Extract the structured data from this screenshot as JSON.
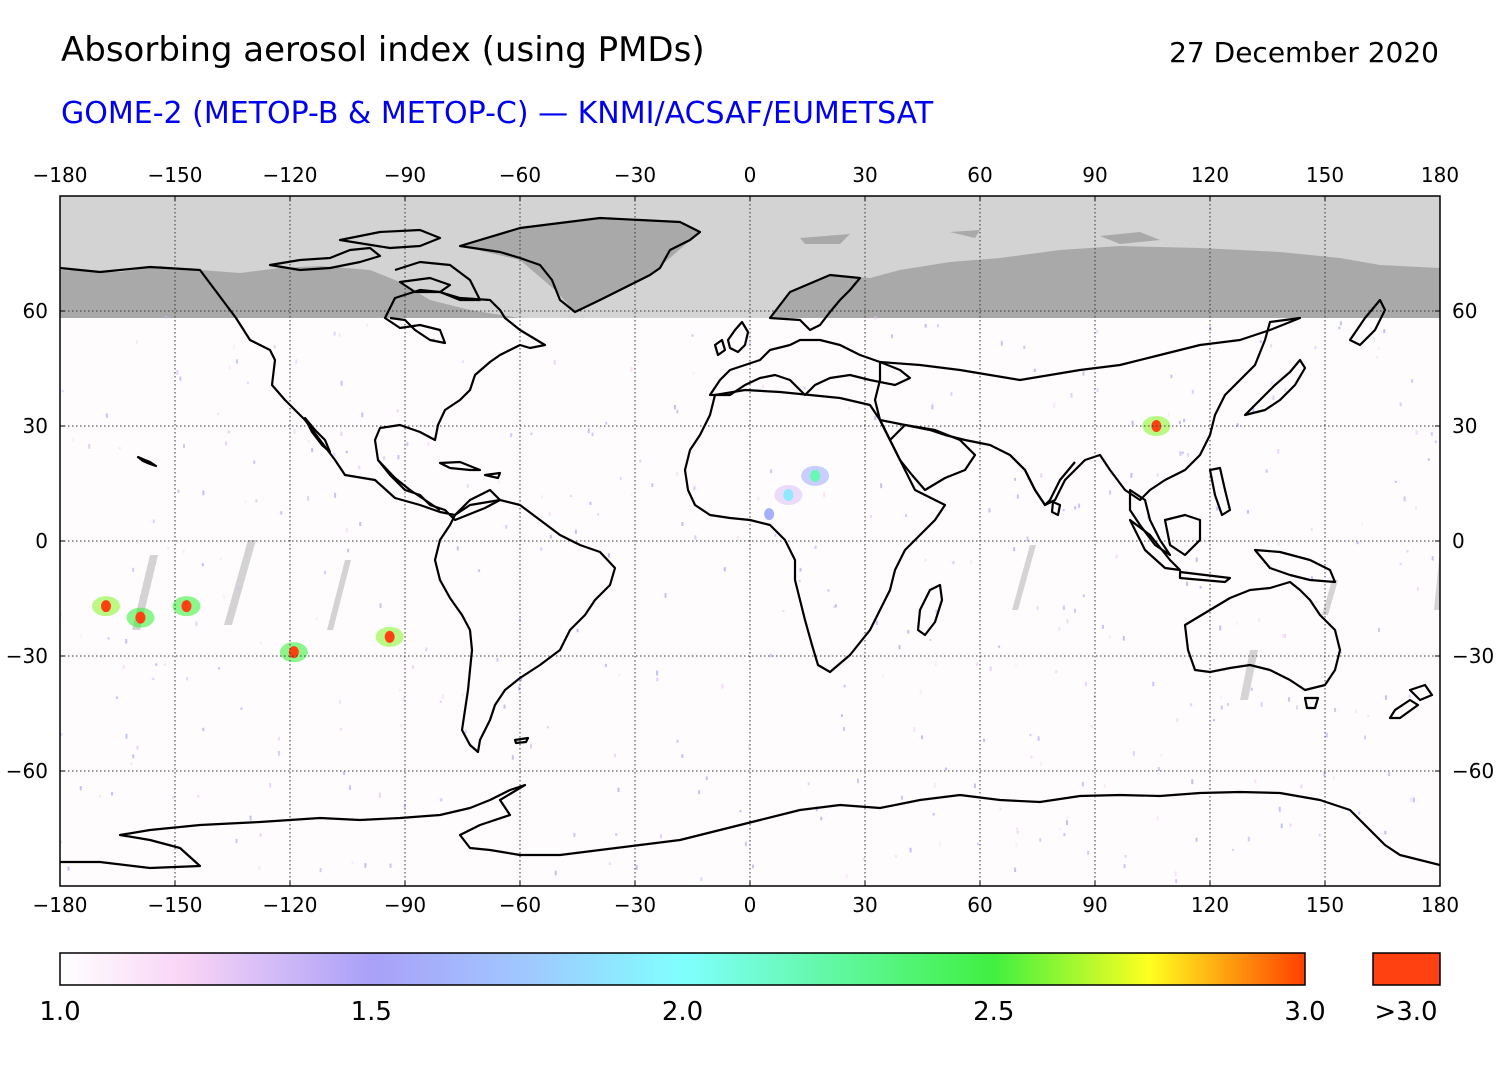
{
  "header": {
    "title": "Absorbing aerosol index (using PMDs)",
    "date": "27 December 2020",
    "subtitle": "GOME-2 (METOP-B & METOP-C) — KNMI/ACSAF/EUMETSAT"
  },
  "colors": {
    "subtitle": "#0000ee",
    "no_data_polar": "#d3d3d3",
    "land_polar": "#a9a9a9",
    "gaps": "#cccccc",
    "grid": "#333333",
    "coast": "#000000"
  },
  "map": {
    "projection": "equirectangular",
    "lon_range": [
      -180,
      180
    ],
    "lat_range": [
      -90,
      90
    ],
    "lon_ticks": [
      -180,
      -150,
      -120,
      -90,
      -60,
      -30,
      0,
      30,
      60,
      90,
      120,
      150,
      180
    ],
    "lat_ticks": [
      60,
      30,
      0,
      -30,
      -60
    ],
    "lon_tick_labels": [
      "−180",
      "−150",
      "−120",
      "−90",
      "−60",
      "−30",
      "0",
      "30",
      "60",
      "90",
      "120",
      "150",
      "180"
    ],
    "lat_tick_labels": [
      "60",
      "30",
      "0",
      "−30",
      "−60"
    ],
    "grid": true,
    "no_data_above_lat": 59
  },
  "colorbar": {
    "min": 1.0,
    "max": 3.0,
    "tick_labels": [
      "1.0",
      "1.5",
      "2.0",
      "2.5",
      "3.0"
    ],
    "over_label": ">3.0",
    "stops": [
      {
        "v": 1.0,
        "c": "#ffffff"
      },
      {
        "v": 1.2,
        "c": "#f9d4f6"
      },
      {
        "v": 1.5,
        "c": "#a9a0f8"
      },
      {
        "v": 1.75,
        "c": "#a0c8ff"
      },
      {
        "v": 2.0,
        "c": "#80ffff"
      },
      {
        "v": 2.5,
        "c": "#40f040"
      },
      {
        "v": 2.75,
        "c": "#ffff20"
      },
      {
        "v": 3.0,
        "c": "#ff4000"
      }
    ],
    "over_color": "#ff4010"
  },
  "aerosol_hotspots": [
    {
      "lon": 106,
      "lat": 30,
      "aai": 3.2
    },
    {
      "lon": 17,
      "lat": 17,
      "aai": 2.2
    },
    {
      "lon": 10,
      "lat": 12,
      "aai": 1.9
    },
    {
      "lon": 5,
      "lat": 7,
      "aai": 1.6
    },
    {
      "lon": -168,
      "lat": -17,
      "aai": 3.2
    },
    {
      "lon": -159,
      "lat": -20,
      "aai": 3.1
    },
    {
      "lon": -147,
      "lat": -17,
      "aai": 3.1
    },
    {
      "lon": -119,
      "lat": -29,
      "aai": 3.1
    },
    {
      "lon": -94,
      "lat": -25,
      "aai": 3.2
    }
  ]
}
